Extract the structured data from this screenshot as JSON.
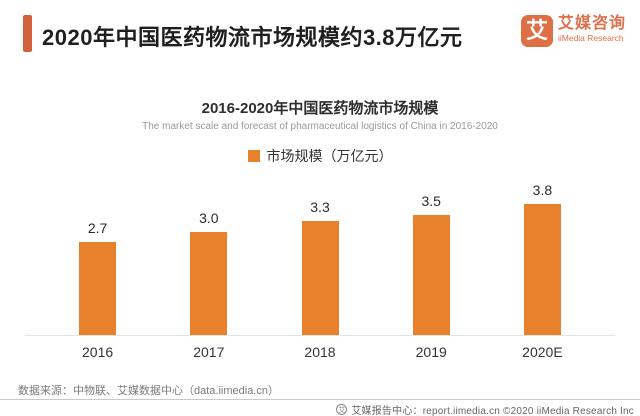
{
  "header": {
    "title": "2020年中国医药物流市场规模约3.8万亿元"
  },
  "brand": {
    "logo_char": "艾",
    "name_cn": "艾媒咨询",
    "name_en": "iiMedia Research"
  },
  "chart": {
    "title": "2016-2020年中国医药物流市场规模",
    "subtitle": "The market scale and forecast of pharmaceutical logistics of China in 2016-2020",
    "legend_label": "市场规模（万亿元）"
  },
  "chart_data": {
    "type": "bar",
    "categories": [
      "2016",
      "2017",
      "2018",
      "2019",
      "2020E"
    ],
    "values": [
      2.7,
      3.0,
      3.3,
      3.5,
      3.8
    ],
    "value_labels": [
      "2.7",
      "3.0",
      "3.3",
      "3.5",
      "3.8"
    ],
    "title": "2016-2020年中国医药物流市场规模",
    "subtitle": "The market scale and forecast of pharmaceutical logistics of China in 2016-2020",
    "legend": [
      "市场规模（万亿元）"
    ],
    "legend_position": "top-center",
    "xlabel": "",
    "ylabel": "市场规模（万亿元）",
    "ylim": [
      0,
      4.2
    ],
    "grid": false,
    "bar_color": "#e8812c"
  },
  "source": {
    "text": "数据来源：中物联、艾媒数据中心（data.iimedia.cn）"
  },
  "footer": {
    "icon_char": "艾",
    "text": "艾媒报告中心：report.iimedia.cn  ©2020  iiMedia Research Inc"
  },
  "colors": {
    "accent_bar": "#d2603a",
    "brand_orange": "#dd6f4b",
    "bar_orange": "#e8812c"
  }
}
